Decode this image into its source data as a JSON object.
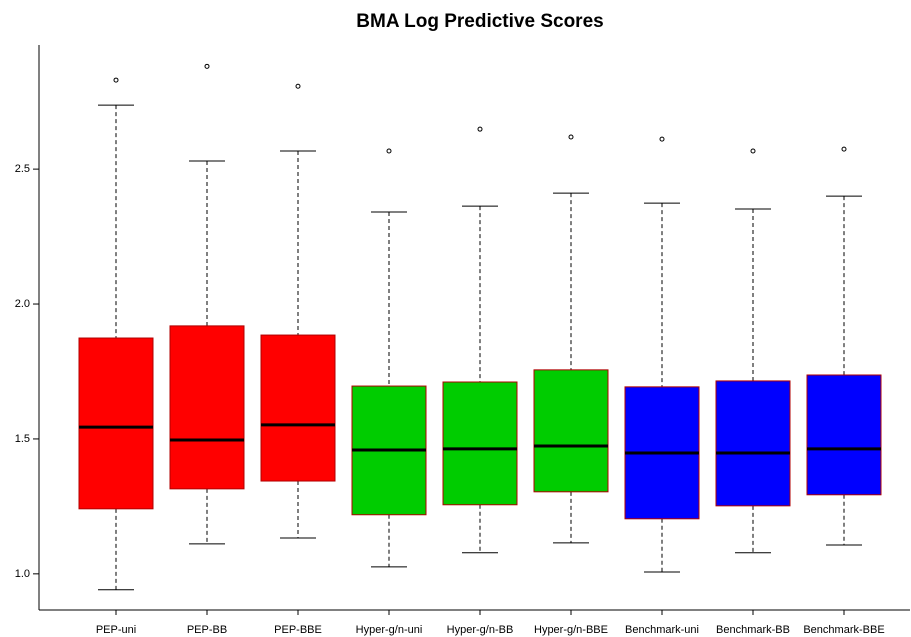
{
  "chart_data": {
    "type": "box",
    "title": "BMA Log Predictive Scores",
    "categories": [
      "PEP-uni",
      "PEP-BB",
      "PEP-BBE",
      "Hyper-g/n-uni",
      "Hyper-g/n-BB",
      "Hyper-g/n-BBE",
      "Benchmark-uni",
      "Benchmark-BB",
      "Benchmark-BBE"
    ],
    "colors": [
      "#ff0000",
      "#ff0000",
      "#ff0000",
      "#00cc00",
      "#00cc00",
      "#00cc00",
      "#0000ff",
      "#0000ff",
      "#0000ff"
    ],
    "border_color": "#b00000",
    "whisker_high": [
      2.737,
      2.53,
      2.567,
      2.341,
      2.363,
      2.411,
      2.374,
      2.352,
      2.4
    ],
    "q3": [
      1.874,
      1.919,
      1.885,
      1.696,
      1.711,
      1.756,
      1.693,
      1.715,
      1.737
    ],
    "median": [
      1.544,
      1.496,
      1.552,
      1.459,
      1.463,
      1.474,
      1.448,
      1.448,
      1.463
    ],
    "q1": [
      1.241,
      1.315,
      1.344,
      1.219,
      1.256,
      1.304,
      1.204,
      1.252,
      1.293
    ],
    "whisker_low": [
      0.941,
      1.111,
      1.133,
      1.026,
      1.078,
      1.115,
      1.007,
      1.078,
      1.107
    ],
    "outliers": [
      2.83,
      2.881,
      2.807,
      2.567,
      2.648,
      2.619,
      2.611,
      2.567,
      2.574
    ],
    "ylim": [
      0.866,
      2.96
    ],
    "yticks": [
      {
        "value": 1,
        "label": "1.0"
      },
      1.5,
      {
        "value": 2,
        "label": "2.0"
      },
      2.5
    ]
  }
}
